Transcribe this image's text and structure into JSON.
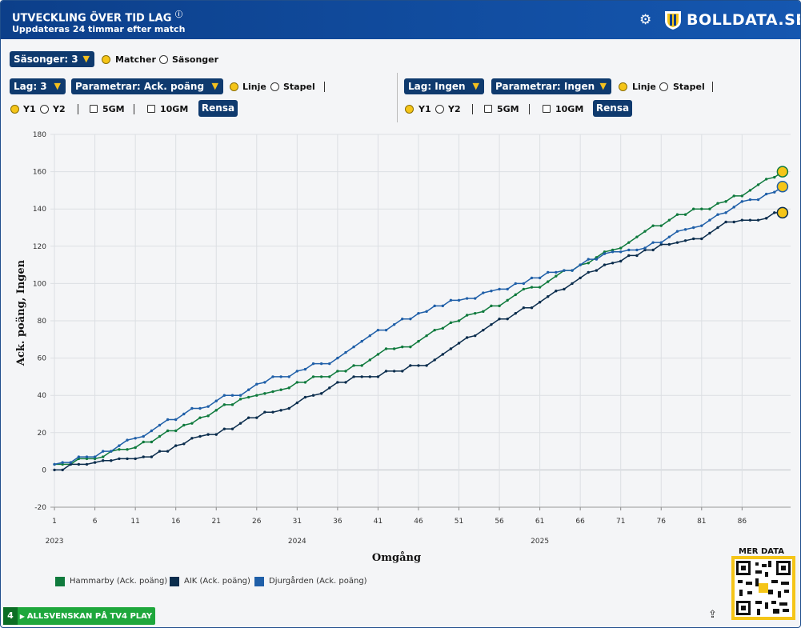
{
  "header": {
    "title": "UTVECKLING ÖVER TID LAG",
    "info_mark": "ⓘ",
    "subtitle": "Uppdateras 24 timmar efter match",
    "brand": "BOLLDATA.SE",
    "gear_icon": "gear-icon"
  },
  "controls": {
    "seasons_dropdown": "Säsonger: 3",
    "mode_options": [
      "Matcher",
      "Säsonger"
    ],
    "left": {
      "team_dropdown": "Lag: 3",
      "param_dropdown": "Parametrar: Ack. poäng",
      "chart_options": [
        "Linje",
        "Stapel"
      ],
      "axis_options": [
        "Y1",
        "Y2"
      ],
      "checkboxes": [
        "5GM",
        "10GM"
      ],
      "reset": "Rensa"
    },
    "right": {
      "team_dropdown": "Lag: Ingen",
      "param_dropdown": "Parametrar: Ingen",
      "chart_options": [
        "Linje",
        "Stapel"
      ],
      "axis_options": [
        "Y1",
        "Y2"
      ],
      "checkboxes": [
        "5GM",
        "10GM"
      ],
      "reset": "Rensa"
    }
  },
  "chart_data": {
    "type": "line",
    "xlabel": "Omgång",
    "ylabel": "Ack. poäng, Ingen",
    "ylim": [
      -20,
      180
    ],
    "yticks": [
      -20,
      0,
      20,
      40,
      60,
      80,
      100,
      120,
      140,
      160,
      180
    ],
    "xticks": [
      1,
      6,
      11,
      16,
      21,
      26,
      31,
      36,
      41,
      46,
      51,
      56,
      61,
      66,
      71,
      76,
      81,
      86
    ],
    "season_labels": [
      {
        "x": 1,
        "label": "2023"
      },
      {
        "x": 31,
        "label": "2024"
      },
      {
        "x": 61,
        "label": "2025"
      }
    ],
    "grid": true,
    "legend_position": "bottom-left",
    "series": [
      {
        "name": "Hammarby (Ack. poäng)",
        "color": "#0f7a3d",
        "values": [
          3,
          3,
          3,
          6,
          6,
          6,
          7,
          10,
          11,
          11,
          12,
          15,
          15,
          18,
          21,
          21,
          24,
          25,
          28,
          29,
          32,
          35,
          35,
          38,
          39,
          40,
          41,
          42,
          43,
          44,
          47,
          47,
          50,
          50,
          50,
          53,
          53,
          56,
          56,
          59,
          62,
          65,
          65,
          66,
          66,
          69,
          72,
          75,
          76,
          79,
          80,
          83,
          84,
          85,
          88,
          88,
          91,
          94,
          97,
          98,
          98,
          101,
          104,
          107,
          107,
          110,
          111,
          114,
          117,
          118,
          119,
          122,
          125,
          128,
          131,
          131,
          134,
          137,
          137,
          140,
          140,
          140,
          143,
          144,
          147,
          147,
          150,
          153,
          156,
          157,
          160
        ]
      },
      {
        "name": "AIK (Ack. poäng)",
        "color": "#0b2d4d",
        "values": [
          0,
          0,
          3,
          3,
          3,
          4,
          5,
          5,
          6,
          6,
          6,
          7,
          7,
          10,
          10,
          13,
          14,
          17,
          18,
          19,
          19,
          22,
          22,
          25,
          28,
          28,
          31,
          31,
          32,
          33,
          36,
          39,
          40,
          41,
          44,
          47,
          47,
          50,
          50,
          50,
          50,
          53,
          53,
          53,
          56,
          56,
          56,
          59,
          62,
          65,
          68,
          71,
          72,
          75,
          78,
          81,
          81,
          84,
          87,
          87,
          90,
          93,
          96,
          97,
          100,
          103,
          106,
          107,
          110,
          111,
          112,
          115,
          115,
          118,
          118,
          121,
          121,
          122,
          123,
          124,
          124,
          127,
          130,
          133,
          133,
          134,
          134,
          134,
          135,
          138,
          138
        ]
      },
      {
        "name": "Djurgården (Ack. poäng)",
        "color": "#1f5fa8",
        "values": [
          3,
          4,
          4,
          7,
          7,
          7,
          10,
          10,
          13,
          16,
          17,
          18,
          21,
          24,
          27,
          27,
          30,
          33,
          33,
          34,
          37,
          40,
          40,
          40,
          43,
          46,
          47,
          50,
          50,
          50,
          53,
          54,
          57,
          57,
          57,
          60,
          63,
          66,
          69,
          72,
          75,
          75,
          78,
          81,
          81,
          84,
          85,
          88,
          88,
          91,
          91,
          92,
          92,
          95,
          96,
          97,
          97,
          100,
          100,
          103,
          103,
          106,
          106,
          107,
          107,
          110,
          113,
          113,
          116,
          117,
          117,
          118,
          118,
          119,
          122,
          122,
          125,
          128,
          129,
          130,
          131,
          134,
          137,
          138,
          141,
          144,
          145,
          145,
          148,
          149,
          152
        ]
      }
    ]
  },
  "footer": {
    "tv4_num": "4",
    "tv4_label": "ALLSVENSKAN PÅ TV4 PLAY",
    "mer_data": "MER DATA",
    "share_icon": "share-icon"
  }
}
